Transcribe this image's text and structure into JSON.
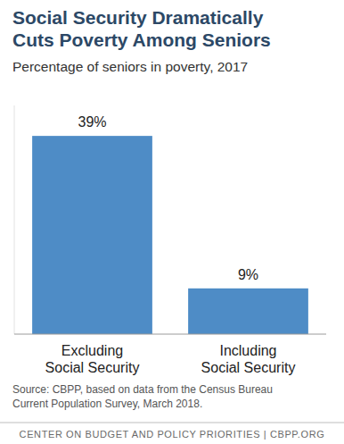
{
  "chart_data": {
    "type": "bar",
    "title": "Social Security Dramatically Cuts Poverty Among Seniors",
    "subtitle": "Percentage of seniors in poverty, 2017",
    "categories": [
      "Excluding Social Security",
      "Including Social Security"
    ],
    "values": [
      39,
      9
    ],
    "value_labels": [
      "39%",
      "9%"
    ],
    "color": "#4e8cc6",
    "ylim": [
      0,
      45
    ],
    "data_labels": true,
    "tick_labels": "x",
    "grid": false,
    "source": "Source: CBPP, based on data from the Census Bureau Current Population Survey, March 2018.",
    "credit": "CENTER ON BUDGET AND POLICY PRIORITIES | CBPP.ORG"
  }
}
